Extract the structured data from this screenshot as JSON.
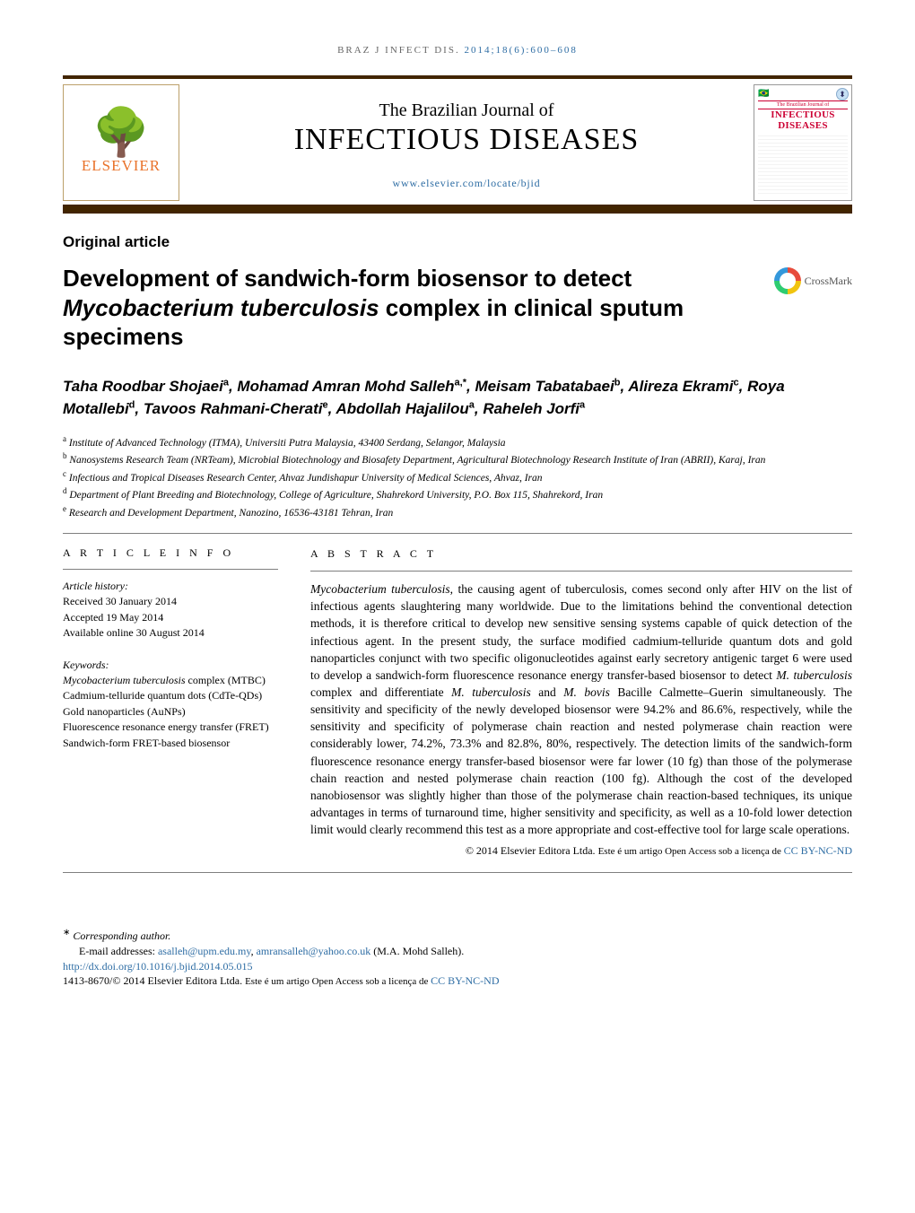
{
  "running_head": {
    "prefix": "BRAZ J INFECT DIS. ",
    "citation": "2014;18(6):600–608",
    "link_href": "#"
  },
  "masthead": {
    "elsevier_name": "ELSEVIER",
    "journal_sub": "The Brazilian Journal of",
    "journal_main": "INFECTIOUS DISEASES",
    "journal_link_text": "www.elsevier.com/locate/bjid",
    "journal_link_href": "#",
    "cover_brand": "The Brazilian Journal of",
    "cover_title": "INFECTIOUS DISEASES"
  },
  "article_type": "Original article",
  "title_parts": {
    "p1": "Development of sandwich-form biosensor to detect ",
    "ital": "Mycobacterium tuberculosis",
    "p2": " complex in clinical sputum specimens"
  },
  "crossmark_label": "CrossMark",
  "authors": [
    {
      "name": "Taha Roodbar Shojaei",
      "aff": "a"
    },
    {
      "name": "Mohamad Amran Mohd Salleh",
      "aff": "a,*"
    },
    {
      "name": "Meisam Tabatabaei",
      "aff": "b"
    },
    {
      "name": "Alireza Ekrami",
      "aff": "c"
    },
    {
      "name": "Roya Motallebi",
      "aff": "d"
    },
    {
      "name": "Tavoos Rahmani-Cherati",
      "aff": "e"
    },
    {
      "name": "Abdollah Hajalilou",
      "aff": "a"
    },
    {
      "name": "Raheleh Jorfi",
      "aff": "a"
    }
  ],
  "affiliations": [
    {
      "sup": "a",
      "text": "Institute of Advanced Technology (ITMA), Universiti Putra Malaysia, 43400 Serdang, Selangor, Malaysia"
    },
    {
      "sup": "b",
      "text": "Nanosystems Research Team (NRTeam), Microbial Biotechnology and Biosafety Department, Agricultural Biotechnology Research Institute of Iran (ABRII), Karaj, Iran"
    },
    {
      "sup": "c",
      "text": "Infectious and Tropical Diseases Research Center, Ahvaz Jundishapur University of Medical Sciences, Ahvaz, Iran"
    },
    {
      "sup": "d",
      "text": "Department of Plant Breeding and Biotechnology, College of Agriculture, Shahrekord University, P.O. Box 115, Shahrekord, Iran"
    },
    {
      "sup": "e",
      "text": "Research and Development Department, Nanozino, 16536-43181 Tehran, Iran"
    }
  ],
  "article_info": {
    "heading": "A R T I C L E   I N F O",
    "history_label": "Article history:",
    "received": "Received 30 January 2014",
    "accepted": "Accepted 19 May 2014",
    "online": "Available online 30 August 2014",
    "keywords_label": "Keywords:",
    "keywords": [
      "Mycobacterium tuberculosis complex (MTBC)",
      "Cadmium-telluride quantum dots (CdTe-QDs)",
      "Gold nanoparticles (AuNPs)",
      "Fluorescence resonance energy transfer (FRET)",
      "Sandwich-form FRET-based biosensor"
    ]
  },
  "abstract": {
    "heading": "A B S T R A C T",
    "lead_ital": "Mycobacterium tuberculosis",
    "body1": ", the causing agent of tuberculosis, comes second only after HIV on the list of infectious agents slaughtering many worldwide. Due to the limitations behind the conventional detection methods, it is therefore critical to develop new sensitive sensing systems capable of quick detection of the infectious agent. In the present study, the surface modified cadmium-telluride quantum dots and gold nanoparticles conjunct with two specific oligonucleotides against early secretory antigenic target 6 were used to develop a sandwich-form fluorescence resonance energy transfer-based biosensor to detect ",
    "mid_ital1": "M. tuberculosis",
    "body2": " complex and differentiate ",
    "mid_ital2": "M. tuberculosis",
    "body3": " and ",
    "mid_ital3": "M. bovis",
    "body4": " Bacille Calmette–Guerin simultaneously. The sensitivity and specificity of the newly developed biosensor were 94.2% and 86.6%, respectively, while the sensitivity and specificity of polymerase chain reaction and nested polymerase chain reaction were considerably lower, 74.2%, 73.3% and 82.8%, 80%, respectively. The detection limits of the sandwich-form fluorescence resonance energy transfer-based biosensor were far lower (10 fg) than those of the polymerase chain reaction and nested polymerase chain reaction (100 fg). Although the cost of the developed nanobiosensor was slightly higher than those of the polymerase chain reaction-based techniques, its unique advantages in terms of turnaround time, higher sensitivity and specificity, as well as a 10-fold lower detection limit would clearly recommend this test as a more appropriate and cost-effective tool for large scale operations."
  },
  "copyright": {
    "line1": "© 2014 Elsevier Editora Ltda. ",
    "line2": "Este é um artigo Open Access sob a licença de ",
    "cc_text": "CC BY-NC-ND",
    "cc_href": "#"
  },
  "footnotes": {
    "corr_label": "Corresponding author.",
    "email_label": "E-mail addresses: ",
    "email1": "asalleh@upm.edu.my",
    "email2": "amransalleh@yahoo.co.uk",
    "email_paren": " (M.A. Mohd Salleh).",
    "doi_text": "http://dx.doi.org/10.1016/j.bjid.2014.05.015",
    "doi_href": "#",
    "issn_line1": "1413-8670/© 2014 Elsevier Editora Ltda. ",
    "issn_line2": "Este é um artigo Open Access sob a licença de ",
    "cc_text": "CC BY-NC-ND",
    "cc_href": "#"
  },
  "colors": {
    "brown": "#422500",
    "link": "#2e6da4",
    "elsevier_orange": "#e9722a"
  }
}
